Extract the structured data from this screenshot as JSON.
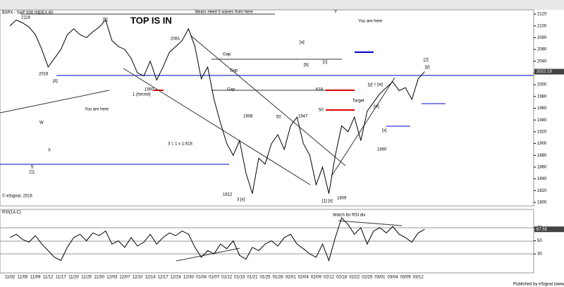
{
  "chart_data": [
    {
      "type": "line",
      "title": "$SPX - S&P 500 INDEX,60",
      "color": "#000000",
      "categories": [
        "11/02",
        null,
        "11/05",
        null,
        "11/09",
        null,
        "11/12",
        null,
        "11/17",
        null,
        "11/20",
        null,
        "11/25",
        null,
        "11/30",
        null,
        "12/03",
        null,
        "12/07",
        null,
        "12/10",
        null,
        "12/14",
        null,
        "12/17",
        null,
        "12/24",
        null,
        "12/30",
        null,
        "01/04",
        null,
        "01/07",
        null,
        "01/12",
        null,
        "01/15",
        null,
        "01/21",
        null,
        "01/25",
        null,
        "01/28",
        null,
        "02/01",
        null,
        "02/04",
        null,
        "02/09",
        null,
        "02/12",
        null,
        "02/18",
        null,
        "02/22",
        null,
        "02/25",
        null,
        "03/01",
        null,
        "03/04",
        null,
        "03/09",
        null,
        "03/12",
        null
      ],
      "values": [
        2100,
        2110,
        2105,
        2098,
        2085,
        2060,
        2030,
        2045,
        2060,
        2085,
        2095,
        2085,
        2080,
        2090,
        2098,
        2110,
        2075,
        2065,
        2060,
        2045,
        2020,
        2015,
        2040,
        2008,
        2030,
        2055,
        2065,
        2075,
        2095,
        2065,
        2010,
        2030,
        1975,
        1935,
        1900,
        1880,
        1905,
        1850,
        1815,
        1875,
        1865,
        1900,
        1915,
        1890,
        1930,
        1945,
        1900,
        1880,
        1830,
        1860,
        1815,
        1880,
        1930,
        1920,
        1945,
        1905,
        1955,
        1970,
        1985,
        1995,
        2005,
        1990,
        1995,
        1975,
        2010,
        2022.19
      ],
      "value_labels": {
        "65": "2022.19"
      },
      "ylim": [
        1800,
        2120
      ],
      "yticks": [
        1800,
        1820,
        1840,
        1860,
        1880,
        1900,
        1920,
        1940,
        1960,
        1980,
        2000,
        2020,
        2040,
        2060,
        2080,
        2100,
        2120
      ],
      "grid": false,
      "annotations": [
        "TOP IS IN",
        "Bears need 5 waves from here",
        "You are here",
        "You are here",
        "Gap",
        "Gap",
        "Gap",
        "Target",
        "3 = 1 x 1.618",
        "1 (forced)",
        "2116",
        "2019",
        "1993",
        "1812",
        "1809",
        "1947",
        "1908",
        "1890",
        "2081",
        "618",
        "50",
        "50",
        "5",
        "[1]",
        "W",
        "X",
        "Y",
        "[4]",
        "[5]",
        "3 [v]",
        "[1] [v]",
        "[2]",
        "[y]",
        "[y] = [w]",
        "[w]",
        "[x]",
        "[a]",
        "[b]",
        "[c]",
        "© eSignal, 2016"
      ]
    },
    {
      "type": "line",
      "title": "RSI(14,C)",
      "color": "#000000",
      "values": [
        55,
        60,
        52,
        48,
        58,
        45,
        35,
        25,
        20,
        40,
        55,
        60,
        50,
        62,
        58,
        65,
        45,
        50,
        40,
        55,
        42,
        48,
        60,
        45,
        55,
        62,
        58,
        65,
        60,
        40,
        25,
        35,
        30,
        45,
        38,
        50,
        28,
        22,
        40,
        35,
        45,
        50,
        42,
        55,
        60,
        45,
        38,
        30,
        25,
        45,
        20,
        55,
        85,
        75,
        60,
        70,
        45,
        65,
        70,
        62,
        72,
        60,
        55,
        48,
        62,
        67.55
      ],
      "value_labels": {
        "65": "67.55"
      },
      "ylim": [
        0,
        100
      ],
      "yticks": [
        30,
        50,
        70
      ],
      "annotations": [
        "Watch for RSI div",
        "Published by eSignal (www.esignal.com)"
      ]
    }
  ]
}
